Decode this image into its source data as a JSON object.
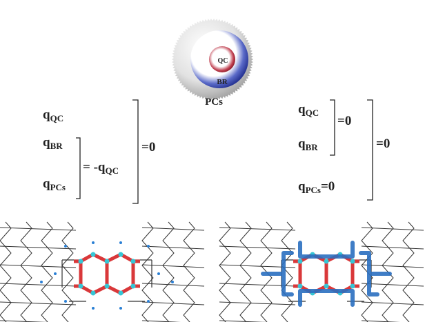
{
  "sphere": {
    "labels": [
      "QC",
      "BR",
      "PCs"
    ]
  },
  "left": {
    "terms": [
      {
        "symbol": "q",
        "subscript": "QC"
      },
      {
        "symbol": "q",
        "subscript": "BR"
      },
      {
        "symbol": "q",
        "subscript": "PCs"
      }
    ],
    "inner_equation": {
      "text": "= -q",
      "subscript": "QC"
    },
    "outer_equation": "=0"
  },
  "right": {
    "terms": [
      {
        "symbol": "q",
        "subscript": "QC"
      },
      {
        "symbol": "q",
        "subscript": "BR"
      }
    ],
    "inner_equation": "=0",
    "pcs_term": {
      "symbol": "q",
      "subscript": "PCs",
      "suffix": "=0"
    },
    "outer_equation": "=0"
  }
}
